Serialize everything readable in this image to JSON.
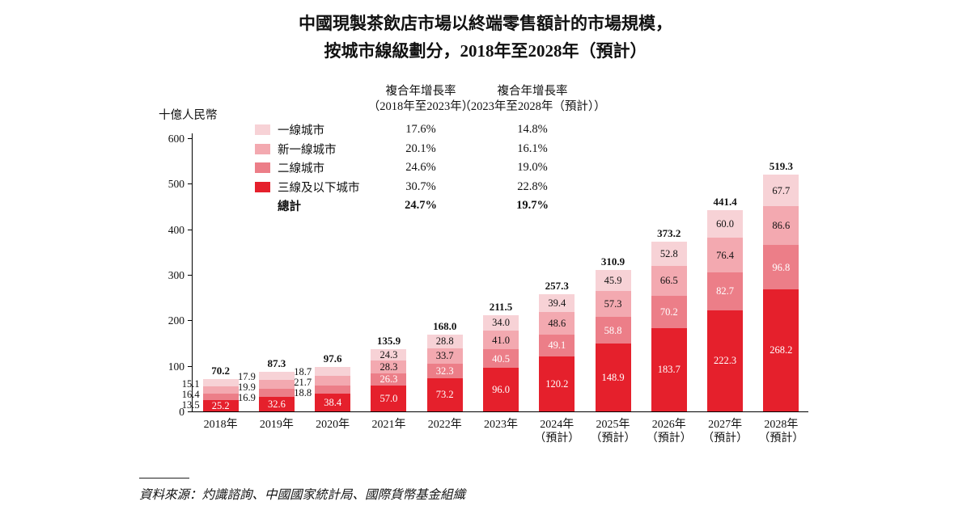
{
  "title": {
    "line1": "中國現製茶飲店市場以終端零售額計的市場規模，",
    "line2": "按城市線級劃分，2018年至2028年（預計）"
  },
  "cagr_table": {
    "col1_header_line1": "複合年增長率",
    "col1_header_line2": "（2018年至2023年）",
    "col2_header_line1": "複合年增長率",
    "col2_header_line2": "（2023年至2028年（預計））",
    "total_label": "總計",
    "total_cagr_2018_2023": "24.7%",
    "total_cagr_2023_2028": "19.7%"
  },
  "chart_data": {
    "type": "bar",
    "stacked": true,
    "title": "中國現製茶飲店市場以終端零售額計的市場規模，按城市線級劃分，2018年至2028年（預計）",
    "ylabel": "十億人民幣",
    "ylim": [
      0,
      600
    ],
    "yticks": [
      0,
      100,
      200,
      300,
      400,
      500,
      600
    ],
    "grid": false,
    "legend_position": "upper-left",
    "categories": [
      "2018年",
      "2019年",
      "2020年",
      "2021年",
      "2022年",
      "2023年",
      "2024年",
      "2025年",
      "2026年",
      "2027年",
      "2028年"
    ],
    "category_suffix_forecast": "（預計）",
    "forecast_from_index": 6,
    "series": [
      {
        "name": "一線城市",
        "color": "#f7d2d6",
        "cagr_2018_2023": "17.6%",
        "cagr_2023_2028": "14.8%",
        "values": [
          15.1,
          17.9,
          18.7,
          24.3,
          28.8,
          34.0,
          39.4,
          45.9,
          52.8,
          60.0,
          67.7
        ]
      },
      {
        "name": "新一線城市",
        "color": "#f3a9b0",
        "cagr_2018_2023": "20.1%",
        "cagr_2023_2028": "16.1%",
        "values": [
          16.4,
          19.9,
          21.7,
          28.3,
          33.7,
          41.0,
          48.6,
          57.3,
          66.5,
          76.4,
          86.6
        ]
      },
      {
        "name": "二線城市",
        "color": "#ec7e88",
        "cagr_2018_2023": "24.6%",
        "cagr_2023_2028": "19.0%",
        "values": [
          13.5,
          16.9,
          18.8,
          26.3,
          32.3,
          40.5,
          49.1,
          58.8,
          70.2,
          82.7,
          96.8
        ]
      },
      {
        "name": "三線及以下城市",
        "color": "#e5202c",
        "cagr_2018_2023": "30.7%",
        "cagr_2023_2028": "22.8%",
        "values": [
          25.2,
          32.6,
          38.4,
          57.0,
          73.2,
          96.0,
          120.2,
          148.9,
          183.7,
          222.3,
          268.2
        ]
      }
    ],
    "totals": [
      70.2,
      87.3,
      97.6,
      135.9,
      168.0,
      211.5,
      257.3,
      310.9,
      373.2,
      441.4,
      519.3
    ]
  },
  "footnote": "資料來源：灼識諮詢、中國國家統計局、國際貨幣基金組織"
}
